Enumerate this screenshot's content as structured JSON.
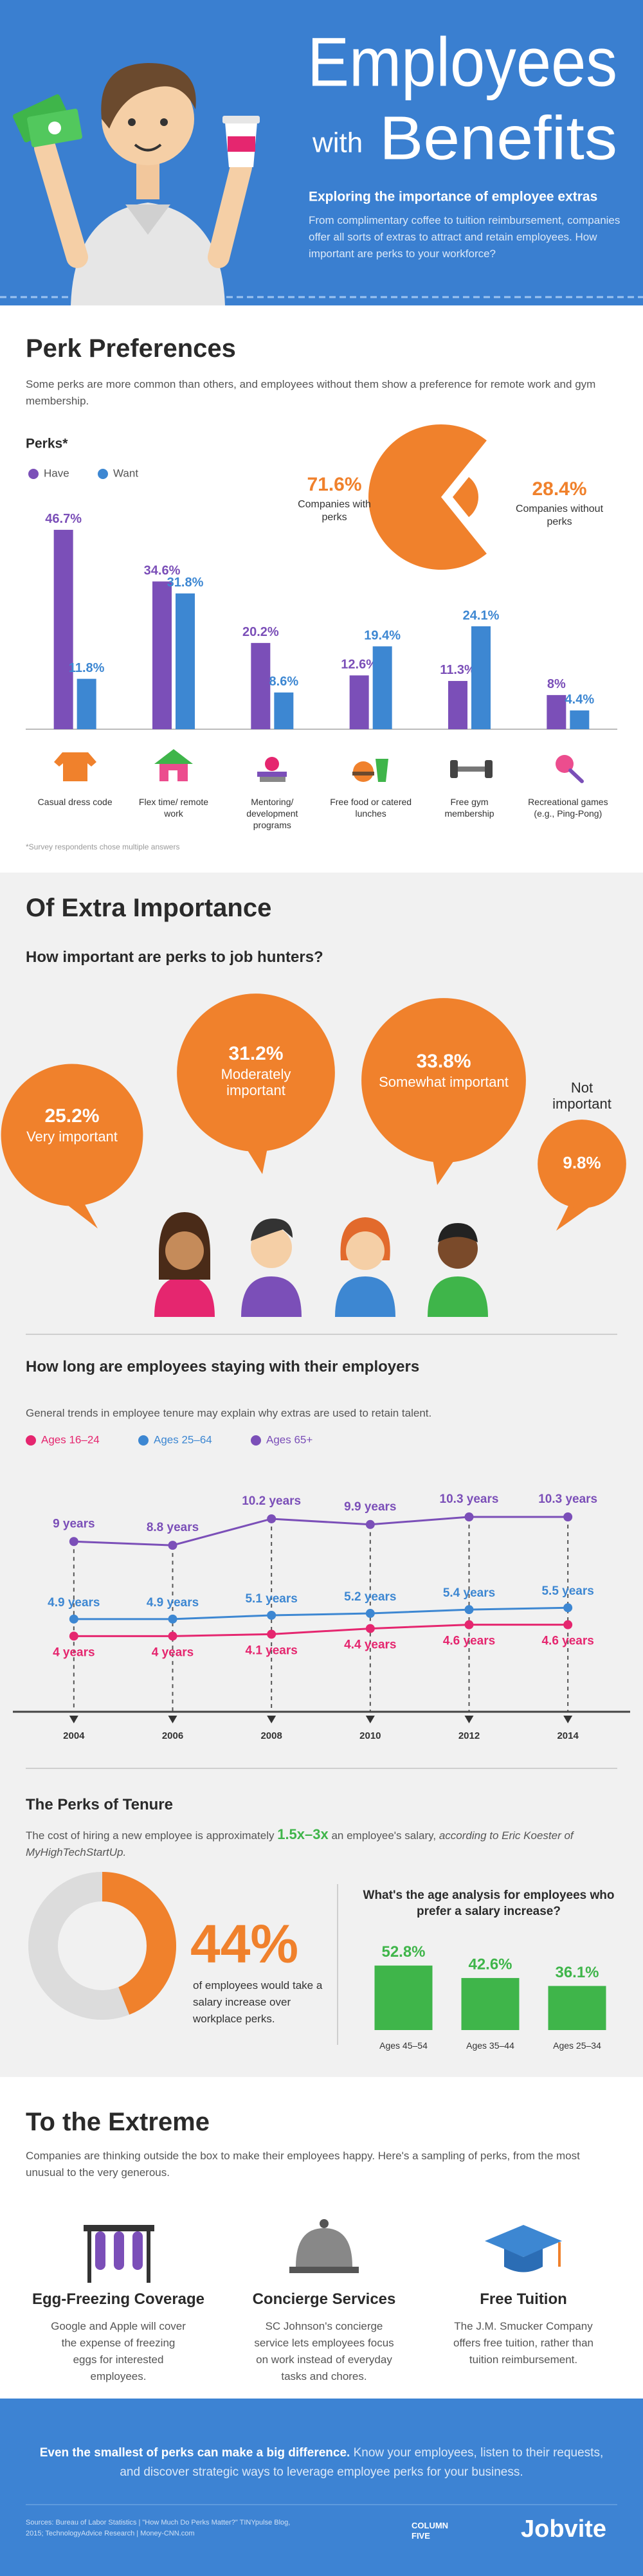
{
  "header": {
    "title_line1": "Employees",
    "title_with": "with",
    "title_line2": "Benefits",
    "subtitle": "Exploring the importance of employee extras",
    "intro": "From complimentary coffee to tuition reimbursement, companies offer all sorts of extras to attract and retain employees. How important are perks to your workforce?"
  },
  "perk_preferences": {
    "heading": "Perk Preferences",
    "text": "Some perks are more common than others, and employees without them show a preference for remote work and gym membership.",
    "chart": {
      "type": "bar",
      "title": "Perks*",
      "categories": [
        "Casual dress code",
        "Flex time/ remote work",
        "Mentoring/ development programs",
        "Free food or catered lunches",
        "Free gym membership",
        "Recreational games (e.g., Ping-Pong)"
      ],
      "series": [
        {
          "name": "Have",
          "color": "#7b4fb8",
          "values": [
            46.7,
            34.6,
            20.2,
            12.6,
            11.3,
            8
          ],
          "value_labels": [
            "46.7%",
            "34.6%",
            "20.2%",
            "12.6%",
            "11.3%",
            "8%"
          ]
        },
        {
          "name": "Want",
          "color": "#3d87d2",
          "values": [
            11.8,
            31.8,
            8.6,
            19.4,
            24.1,
            4.4
          ],
          "value_labels": [
            "11.8%",
            "31.8%",
            "8.6%",
            "19.4%",
            "24.1%",
            "4.4%"
          ]
        }
      ],
      "ylim": [
        0,
        50
      ]
    },
    "footnote": "*Survey respondents chose multiple answers",
    "pie": {
      "type": "pie",
      "categories": [
        "Companies with perks",
        "Companies without perks"
      ],
      "values": [
        71.6,
        28.4
      ],
      "value_labels": [
        "71.6%",
        "28.4%"
      ],
      "color": "#f0812c"
    }
  },
  "importance": {
    "heading": "Of Extra Importance",
    "chart": {
      "type": "bubble",
      "title": "How important are perks to job hunters?",
      "categories": [
        "Very important",
        "Moderately important",
        "Somewhat important",
        "Not important"
      ],
      "values": [
        25.2,
        31.2,
        33.8,
        9.8
      ],
      "value_labels": [
        "25.2%",
        "31.2%",
        "33.8%",
        "9.8%"
      ],
      "color": "#f0812c"
    }
  },
  "tenure_length": {
    "chart": {
      "type": "line",
      "title": "How long are employees staying with their employers",
      "subtitle": "General trends in employee tenure may explain why extras are used to retain talent.",
      "x": [
        2004,
        2006,
        2008,
        2010,
        2012,
        2014
      ],
      "xlim": [
        2003,
        2015
      ],
      "xticks": [
        2004,
        2006,
        2008,
        2010,
        2012,
        2014
      ],
      "ylim": [
        0,
        12
      ],
      "series": [
        {
          "name": "Ages 16–24",
          "color": "#e5266f",
          "values": [
            4,
            4,
            4.1,
            4.4,
            4.6,
            4.6
          ],
          "value_labels": [
            "4 years",
            "4 years",
            "4.1 years",
            "4.4 years",
            "4.6 years",
            "4.6 years"
          ]
        },
        {
          "name": "Ages 25–64",
          "color": "#3d87d2",
          "values": [
            4.9,
            4.9,
            5.1,
            5.2,
            5.4,
            5.5
          ],
          "value_labels": [
            "4.9 years",
            "4.9 years",
            "5.1 years",
            "5.2 years",
            "5.4 years",
            "5.5 years"
          ]
        },
        {
          "name": "Ages 65+",
          "color": "#7b4fb8",
          "values": [
            9,
            8.8,
            10.2,
            9.9,
            10.3,
            10.3
          ],
          "value_labels": [
            "9 years",
            "8.8 years",
            "10.2 years",
            "9.9 years",
            "10.3 years",
            "10.3 years"
          ]
        }
      ]
    }
  },
  "perks_of_tenure": {
    "heading": "The Perks of Tenure",
    "text_before": "The cost of hiring a new employee is approximately ",
    "highlight": "1.5x–3x",
    "text_after": " an employee's salary, ",
    "citation": "according to Eric Koester of MyHighTechStartUp.",
    "donut": {
      "type": "donut",
      "values": [
        44
      ],
      "value_labels": [
        "44%"
      ],
      "text": "of employees would take a salary increase over workplace perks.",
      "color": "#f0812c"
    },
    "salary": {
      "type": "bar",
      "title": "What's the age analysis for employees who prefer a salary increase?",
      "categories": [
        "Ages 45–54",
        "Ages 35–44",
        "Ages 25–34"
      ],
      "values": [
        52.8,
        42.6,
        36.1
      ],
      "value_labels": [
        "52.8%",
        "42.6%",
        "36.1%"
      ],
      "color": "#3fb54a",
      "ylim": [
        0,
        60
      ]
    }
  },
  "extreme": {
    "heading": "To the Extreme",
    "text": "Companies are thinking outside the box to make their employees happy. Here's a sampling of perks, from the most unusual to the very generous.",
    "items": [
      {
        "title": "Egg-Freezing Coverage",
        "text": "Google and Apple will cover the expense of freezing eggs for interested employees."
      },
      {
        "title": "Concierge Services",
        "text": "SC Johnson's concierge service lets employees focus on work instead of everyday tasks and chores."
      },
      {
        "title": "Free Tuition",
        "text": "The J.M. Smucker Company offers free tuition, rather than tuition reimbursement."
      }
    ]
  },
  "footer": {
    "lead_bold": "Even the smallest of perks can make a big difference.",
    "lead_rest": " Know your employees, listen to their requests, and discover strategic ways to leverage employee perks for your business.",
    "sources": "Sources: Bureau of Labor Statistics | \"How Much Do Perks Matter?\" TINYpulse Blog, 2015; TechnologyAdvice Research | Money-CNN.com",
    "logo_1": "COLUMN FIVE",
    "logo_2": "Jobvite"
  }
}
